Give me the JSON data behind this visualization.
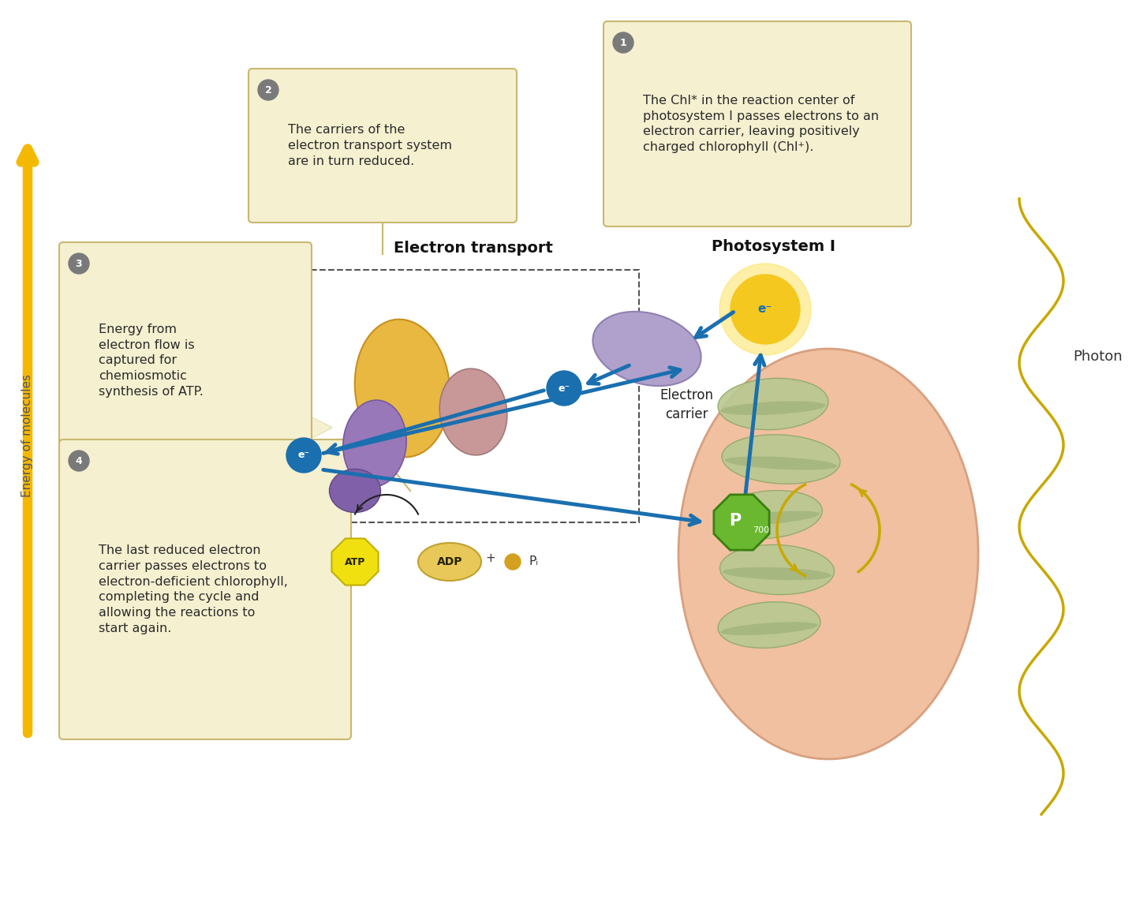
{
  "background_color": "#ffffff",
  "box_fill": "#f5f0d0",
  "box_edge": "#c8b870",
  "num_badge_color": "#7a7a7a",
  "arrow_color": "#1a6faf",
  "energy_arrow_color": "#f5b800",
  "label1": "The Chl* in the reaction center of\nphotosystem I passes electrons to an\nelectron carrier, leaving positively\ncharged chlorophyll (Chl⁺).",
  "label2": "The carriers of the\nelectron transport system\nare in turn reduced.",
  "label3": "Energy from\nelectron flow is\ncaptured for\nchemiosmotic\nsynthesis of ATP.",
  "label4": "The last reduced electron\ncarrier passes electrons to\nelectron-deficient chlorophyll,\ncompleting the cycle and\nallowing the reactions to\nstart again.",
  "title_et": "Electron transport",
  "title_ps": "Photosystem I",
  "label_ec": "Electron\ncarrier",
  "label_photon": "Photon",
  "atp_label": "ATP",
  "adp_label": "ADP",
  "pi_label": "Pᵢ",
  "energy_label": "Energy of molecules",
  "p700_label": "P",
  "p700_sub": "700",
  "chloro_color": "#f0c0a0",
  "chloro_edge": "#d8a080",
  "grana_color": "#b8c890",
  "grana_edge": "#90a868",
  "p700_green": "#6ab830",
  "p700_green_edge": "#3a8010",
  "yellow_arrow_color": "#c8a800",
  "wavy_color": "#c8a800"
}
